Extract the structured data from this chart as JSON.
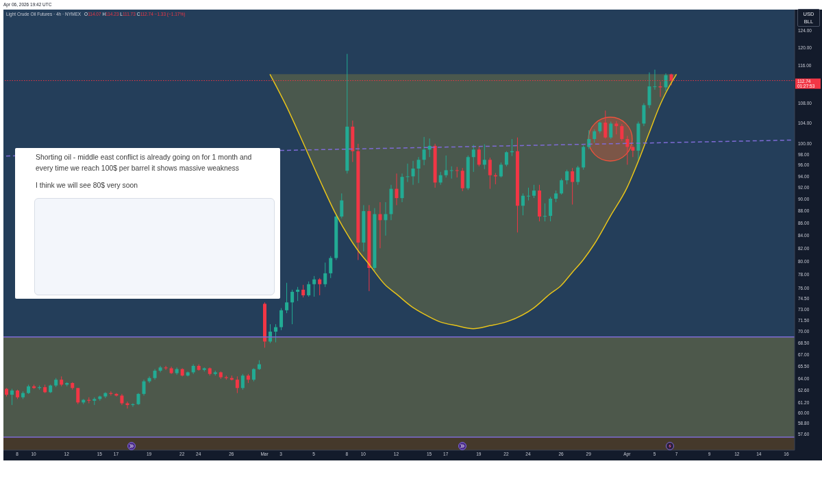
{
  "chart_data": {
    "type": "candlestick",
    "title": "Light Crude Oil Futures · 4h · NYMEX",
    "subtitle": "O114.07 H114.23 L111.73 C112.74 −1.33 (−1.17%)",
    "annotations": [
      "Apr 06, 2026 19:42 UTC",
      "Shorting oil - middle east conflict is already going on for 1 month and every time we reach 100$ per barrel it shows massive weakness",
      "I think we will see 80$ very soon",
      "USD",
      "BLL",
      "01:27:53"
    ],
    "categories": [
      null,
      null,
      "8",
      null,
      null,
      "10",
      null,
      null,
      null,
      null,
      null,
      "12",
      null,
      null,
      null,
      null,
      null,
      "15",
      null,
      null,
      "17",
      null,
      null,
      null,
      null,
      null,
      "19",
      null,
      null,
      null,
      null,
      null,
      "22",
      null,
      null,
      "24",
      null,
      null,
      null,
      null,
      null,
      "26",
      null,
      null,
      null,
      null,
      null,
      "Mar",
      null,
      null,
      "3",
      null,
      null,
      null,
      null,
      null,
      "5",
      null,
      null,
      null,
      null,
      null,
      "8",
      null,
      null,
      "10",
      null,
      null,
      null,
      null,
      null,
      "12",
      null,
      null,
      null,
      null,
      null,
      "15",
      null,
      null,
      "17",
      null,
      null,
      null,
      null,
      null,
      "19",
      null,
      null,
      null,
      null,
      "22",
      null,
      null,
      null,
      "24",
      null,
      null,
      null,
      null,
      null,
      "26",
      null,
      null,
      null,
      null,
      "29",
      null,
      null,
      null,
      null,
      null,
      null,
      "Apr",
      null,
      null,
      null,
      null,
      "5",
      null,
      null,
      null,
      "7",
      null,
      null,
      null,
      null,
      null,
      "9",
      null,
      null,
      null,
      null,
      "12",
      null,
      null,
      null,
      "14",
      null,
      null,
      null,
      null,
      "16",
      null
    ],
    "ohlc": [
      [
        62.8,
        62.9,
        61.9,
        62.1
      ],
      [
        62.1,
        62.8,
        60.9,
        62.6
      ],
      [
        62.6,
        62.7,
        61.6,
        61.8
      ],
      [
        61.8,
        62.5,
        61.6,
        62.3
      ],
      [
        62.3,
        63.3,
        62.2,
        63.1
      ],
      [
        63.1,
        63.3,
        62.8,
        62.9
      ],
      [
        62.9,
        63.2,
        62.7,
        63.0
      ],
      [
        63.0,
        63.3,
        62.3,
        62.4
      ],
      [
        62.4,
        63.3,
        62.3,
        63.2
      ],
      [
        63.2,
        64.1,
        63.0,
        63.9
      ],
      [
        63.9,
        64.3,
        63.1,
        63.3
      ],
      [
        63.3,
        63.6,
        63.1,
        63.5
      ],
      [
        63.5,
        63.6,
        62.7,
        62.9
      ],
      [
        62.9,
        62.9,
        61.0,
        61.2
      ],
      [
        61.2,
        61.6,
        61.0,
        61.5
      ],
      [
        61.5,
        61.8,
        61.1,
        61.4
      ],
      [
        61.4,
        61.8,
        60.9,
        61.6
      ],
      [
        61.6,
        62.0,
        61.4,
        61.9
      ],
      [
        61.9,
        62.4,
        61.7,
        62.3
      ],
      [
        62.3,
        62.5,
        62.0,
        62.2
      ],
      [
        62.2,
        62.3,
        61.9,
        62.0
      ],
      [
        62.0,
        62.2,
        60.9,
        61.1
      ],
      [
        61.1,
        61.3,
        60.5,
        60.9
      ],
      [
        60.9,
        61.1,
        60.7,
        61.0
      ],
      [
        61.0,
        62.3,
        60.9,
        62.2
      ],
      [
        62.2,
        63.9,
        62.0,
        63.7
      ],
      [
        63.7,
        64.3,
        63.5,
        64.1
      ],
      [
        64.1,
        65.2,
        63.9,
        65.0
      ],
      [
        65.0,
        65.6,
        64.8,
        65.4
      ],
      [
        65.4,
        65.6,
        65.1,
        65.3
      ],
      [
        65.3,
        65.5,
        64.6,
        64.7
      ],
      [
        64.7,
        65.4,
        64.5,
        65.2
      ],
      [
        65.2,
        65.3,
        64.3,
        64.4
      ],
      [
        64.4,
        64.9,
        64.3,
        64.8
      ],
      [
        64.8,
        65.8,
        64.6,
        65.6
      ],
      [
        65.6,
        65.8,
        65.0,
        65.1
      ],
      [
        65.1,
        65.4,
        64.9,
        65.3
      ],
      [
        65.3,
        65.4,
        64.4,
        64.6
      ],
      [
        64.6,
        65.0,
        64.4,
        64.8
      ],
      [
        64.8,
        64.9,
        64.0,
        64.2
      ],
      [
        64.2,
        64.4,
        63.9,
        64.1
      ],
      [
        64.1,
        64.4,
        63.8,
        63.9
      ],
      [
        63.9,
        64.3,
        62.3,
        62.9
      ],
      [
        62.9,
        64.6,
        62.7,
        64.4
      ],
      [
        64.4,
        64.6,
        63.5,
        63.9
      ],
      [
        63.9,
        65.3,
        63.7,
        65.2
      ],
      [
        65.2,
        66.3,
        65.1,
        65.8
      ],
      [
        73.8,
        74.0,
        67.9,
        68.7
      ],
      [
        68.7,
        71.0,
        68.5,
        70.0
      ],
      [
        70.0,
        71.0,
        68.6,
        70.6
      ],
      [
        70.6,
        73.2,
        70.2,
        72.9
      ],
      [
        72.9,
        76.8,
        72.5,
        74.0
      ],
      [
        74.0,
        75.8,
        71.0,
        75.5
      ],
      [
        75.5,
        76.2,
        74.2,
        75.8
      ],
      [
        75.8,
        76.5,
        74.7,
        75.0
      ],
      [
        75.0,
        77.0,
        74.8,
        76.6
      ],
      [
        76.6,
        77.8,
        74.8,
        77.3
      ],
      [
        77.3,
        77.5,
        75.0,
        76.6
      ],
      [
        76.6,
        79.8,
        76.2,
        78.2
      ],
      [
        78.2,
        80.8,
        77.5,
        80.5
      ],
      [
        80.5,
        87.5,
        80.2,
        87.1
      ],
      [
        87.1,
        91.0,
        86.8,
        89.8
      ],
      [
        95.0,
        118.6,
        94.5,
        103.3
      ],
      [
        103.3,
        104.5,
        96.6,
        98.6
      ],
      [
        98.6,
        100.0,
        80.2,
        82.9
      ],
      [
        82.9,
        89.0,
        81.5,
        88.0
      ],
      [
        88.0,
        89.0,
        75.6,
        79.0
      ],
      [
        79.0,
        88.5,
        78.5,
        87.5
      ],
      [
        87.5,
        89.5,
        82.0,
        86.5
      ],
      [
        86.5,
        89.5,
        84.0,
        87.5
      ],
      [
        87.5,
        92.5,
        86.5,
        91.8
      ],
      [
        91.8,
        94.5,
        89.0,
        90.2
      ],
      [
        90.2,
        94.5,
        89.5,
        93.9
      ],
      [
        93.9,
        96.3,
        93.0,
        94.0
      ],
      [
        94.0,
        96.8,
        92.5,
        95.4
      ],
      [
        95.4,
        97.5,
        92.8,
        97.0
      ],
      [
        97.0,
        101.3,
        96.0,
        98.9
      ],
      [
        98.9,
        101.0,
        97.5,
        99.6
      ],
      [
        99.6,
        100.0,
        92.0,
        92.9
      ],
      [
        92.9,
        94.8,
        92.5,
        94.2
      ],
      [
        94.2,
        97.8,
        93.8,
        95.1
      ],
      [
        95.1,
        95.8,
        93.6,
        95.1
      ],
      [
        95.1,
        95.7,
        93.8,
        95.0
      ],
      [
        95.0,
        95.5,
        91.4,
        91.9
      ],
      [
        91.9,
        97.8,
        91.6,
        97.5
      ],
      [
        97.5,
        99.8,
        94.8,
        98.9
      ],
      [
        98.9,
        99.4,
        95.8,
        96.1
      ],
      [
        96.1,
        99.9,
        95.3,
        97.0
      ],
      [
        97.0,
        97.4,
        91.8,
        94.2
      ],
      [
        94.2,
        94.6,
        92.6,
        94.0
      ],
      [
        94.0,
        96.5,
        93.8,
        96.1
      ],
      [
        96.1,
        98.6,
        95.8,
        98.4
      ],
      [
        98.4,
        100.9,
        97.7,
        98.6
      ],
      [
        98.6,
        101.2,
        84.5,
        88.9
      ],
      [
        88.9,
        91.0,
        87.3,
        90.6
      ],
      [
        90.6,
        92.0,
        89.8,
        90.6
      ],
      [
        90.6,
        92.5,
        90.2,
        91.5
      ],
      [
        91.5,
        92.5,
        86.3,
        87.1
      ],
      [
        87.1,
        89.3,
        86.3,
        87.2
      ],
      [
        87.2,
        90.4,
        86.3,
        90.1
      ],
      [
        90.1,
        91.5,
        89.5,
        91.0
      ],
      [
        91.0,
        93.6,
        90.8,
        93.3
      ],
      [
        93.3,
        95.2,
        92.6,
        94.9
      ],
      [
        94.9,
        95.5,
        89.1,
        93.0
      ],
      [
        93.0,
        95.9,
        92.5,
        95.6
      ],
      [
        95.6,
        99.7,
        95.2,
        99.4
      ],
      [
        99.4,
        102.6,
        99.0,
        100.9
      ],
      [
        100.9,
        102.8,
        100.2,
        102.4
      ],
      [
        102.4,
        104.3,
        102.0,
        104.1
      ],
      [
        104.1,
        106.5,
        101.0,
        101.2
      ],
      [
        101.2,
        104.3,
        100.9,
        103.9
      ],
      [
        103.9,
        104.4,
        101.8,
        103.4
      ],
      [
        103.4,
        103.8,
        100.5,
        100.9
      ],
      [
        100.9,
        101.5,
        96.1,
        99.4
      ],
      [
        99.4,
        99.8,
        97.5,
        98.7
      ],
      [
        98.7,
        104.3,
        97.0,
        103.9
      ],
      [
        103.9,
        108.0,
        103.4,
        107.6
      ],
      [
        107.6,
        114.5,
        107.0,
        111.5
      ],
      [
        111.5,
        115.1,
        110.8,
        111.5
      ],
      [
        111.5,
        112.5,
        109.3,
        111.3
      ],
      [
        111.3,
        114.3,
        110.5,
        113.9
      ],
      [
        114.07,
        114.23,
        111.73,
        112.74
      ],
      null,
      null,
      null,
      null,
      null,
      null,
      null,
      null,
      null,
      null,
      null,
      null,
      null,
      null,
      null,
      null,
      null,
      null,
      null,
      null,
      null,
      null
    ],
    "series": [
      {
        "type": "line",
        "color": "#e8c41a",
        "values": [
          null,
          null,
          null,
          null,
          null,
          null,
          null,
          null,
          null,
          null,
          null,
          null,
          null,
          null,
          null,
          null,
          null,
          null,
          null,
          null,
          null,
          null,
          null,
          null,
          null,
          null,
          null,
          null,
          null,
          null,
          null,
          null,
          null,
          null,
          null,
          null,
          null,
          null,
          null,
          null,
          null,
          null,
          null,
          null,
          null,
          null,
          null,
          null,
          114.1,
          null,
          null,
          107.4,
          null,
          null,
          100.3,
          null,
          null,
          93.5,
          null,
          null,
          87.5,
          null,
          null,
          null,
          81.7,
          null,
          79.6,
          null,
          null,
          76.5,
          null,
          75.2,
          null,
          null,
          73.3,
          null,
          72.4,
          null,
          null,
          71.3,
          null,
          null,
          70.8,
          null,
          null,
          70.4,
          null,
          null,
          70.8,
          null,
          null,
          71.3,
          null,
          null,
          null,
          null,
          73.2,
          null,
          null,
          75.2,
          null,
          76.4,
          null,
          78.3,
          null,
          80.2,
          null,
          82.6,
          null,
          null,
          87.2,
          null,
          null,
          92.0,
          null,
          96.6,
          null,
          102.0,
          null,
          107.6,
          110.0,
          null,
          114.1,
          null,
          null,
          null,
          null,
          null,
          null,
          null,
          null,
          null,
          null,
          null,
          null,
          null,
          null,
          null,
          null,
          null,
          null,
          null,
          null,
          null
        ],
        "lower": [
          null,
          null,
          null,
          null,
          null,
          null,
          null,
          null,
          null,
          null,
          null,
          null,
          null,
          null,
          null,
          null,
          null,
          null,
          null,
          null,
          null,
          null,
          null,
          null,
          null,
          null,
          null,
          null,
          null,
          null,
          null,
          null,
          null,
          null,
          null,
          null,
          null,
          null,
          null,
          null,
          null,
          null,
          null,
          null,
          null,
          null,
          null,
          null,
          114.1,
          null,
          null,
          107.4,
          null,
          null,
          100.3,
          null,
          null,
          93.5,
          null,
          null,
          87.5,
          null,
          null,
          null,
          81.7,
          null,
          79.6,
          null,
          null,
          76.5,
          null,
          75.2,
          null,
          null,
          73.3,
          null,
          72.4,
          null,
          null,
          71.3,
          null,
          null,
          70.8,
          null,
          null,
          70.4,
          null,
          null,
          70.8,
          null,
          null,
          71.3,
          null,
          null,
          null,
          null,
          73.2,
          null,
          null,
          75.2,
          null,
          76.4,
          null,
          78.3,
          null,
          80.2,
          null,
          82.6,
          null,
          null,
          87.2,
          null,
          null,
          92.0,
          null,
          96.6,
          null,
          102.0,
          null,
          107.6,
          110.0,
          null,
          114.1,
          null,
          null,
          null,
          null,
          null,
          null,
          null,
          null,
          null,
          null,
          null,
          null,
          null,
          null,
          null,
          null,
          null,
          null,
          null,
          null,
          null
        ],
        "upper": [
          null,
          null,
          null,
          null,
          null,
          null,
          null,
          null,
          null,
          null,
          null,
          null,
          null,
          null,
          null,
          null,
          null,
          null,
          null,
          null,
          null,
          null,
          null,
          null,
          null,
          null,
          null,
          null,
          null,
          null,
          null,
          null,
          null,
          null,
          null,
          null,
          null,
          null,
          null,
          null,
          null,
          null,
          null,
          null,
          null,
          null,
          null,
          null,
          114.1,
          null,
          null,
          114.1,
          null,
          null,
          114.1,
          null,
          null,
          114.1,
          null,
          null,
          114.1,
          null,
          null,
          null,
          114.1,
          null,
          114.1,
          null,
          null,
          114.1,
          null,
          114.1,
          null,
          null,
          114.1,
          null,
          114.1,
          null,
          null,
          114.1,
          null,
          null,
          114.1,
          null,
          null,
          114.1,
          null,
          null,
          114.1,
          null,
          null,
          114.1,
          null,
          null,
          null,
          null,
          114.1,
          null,
          null,
          114.1,
          null,
          114.1,
          null,
          114.1,
          null,
          114.1,
          null,
          114.1,
          null,
          null,
          114.1,
          null,
          null,
          114.1,
          null,
          114.1,
          null,
          114.1,
          null,
          114.1,
          114.1,
          null,
          114.1,
          null,
          null,
          null,
          null,
          null,
          null,
          null,
          null,
          null,
          null,
          null,
          null,
          null,
          null,
          null,
          null,
          null,
          null,
          null,
          null,
          null
        ]
      },
      {
        "type": "line",
        "color": "#7e6bd6",
        "line_style": "dashed",
        "values": [
          97.7,
          null,
          null,
          null,
          null,
          null,
          null,
          null,
          null,
          null,
          null,
          null,
          null,
          null,
          null,
          null,
          null,
          null,
          null,
          null,
          null,
          null,
          null,
          null,
          null,
          null,
          null,
          null,
          null,
          null,
          null,
          null,
          null,
          null,
          null,
          null,
          null,
          null,
          null,
          null,
          null,
          null,
          null,
          null,
          null,
          null,
          null,
          null,
          null,
          null,
          null,
          null,
          null,
          null,
          null,
          null,
          null,
          null,
          null,
          null,
          null,
          null,
          null,
          null,
          null,
          null,
          null,
          null,
          null,
          null,
          null,
          null,
          null,
          null,
          null,
          null,
          null,
          null,
          null,
          null,
          null,
          null,
          null,
          null,
          null,
          null,
          null,
          null,
          null,
          null,
          null,
          null,
          null,
          null,
          null,
          null,
          null,
          null,
          null,
          null,
          null,
          null,
          null,
          null,
          null,
          null,
          null,
          null,
          null,
          null,
          null,
          null,
          null,
          null,
          null,
          null,
          null,
          null,
          null,
          null,
          null,
          null,
          null,
          null,
          null,
          null,
          null,
          null,
          null,
          null,
          null,
          null,
          null,
          null,
          null,
          null,
          null,
          null,
          null,
          null,
          null,
          null,
          null,
          100.7
        ]
      }
    ],
    "ylim": [
      55.9,
      129
    ],
    "yticks": [
      {
        "value": 57.6,
        "label": "57.60"
      },
      {
        "value": 58.8,
        "label": "58.80"
      },
      {
        "value": 60,
        "label": "60.00"
      },
      {
        "value": 61.2,
        "label": "61.20"
      },
      {
        "value": 62.6,
        "label": "62.60"
      },
      {
        "value": 64,
        "label": "64.00"
      },
      {
        "value": 65.5,
        "label": "65.50"
      },
      {
        "value": 67,
        "label": "67.00"
      },
      {
        "value": 68.5,
        "label": "68.50"
      },
      {
        "value": 70,
        "label": "70.00"
      },
      {
        "value": 71.5,
        "label": "71.50"
      },
      {
        "value": 73,
        "label": "73.00"
      },
      {
        "value": 74.5,
        "label": "74.50"
      },
      {
        "value": 76,
        "label": "76.00"
      },
      {
        "value": 78,
        "label": "78.00"
      },
      {
        "value": 80,
        "label": "80.00"
      },
      {
        "value": 82,
        "label": "82.00"
      },
      {
        "value": 84,
        "label": "84.00"
      },
      {
        "value": 86,
        "label": "86.00"
      },
      {
        "value": 88,
        "label": "88.00"
      },
      {
        "value": 90,
        "label": "90.00"
      },
      {
        "value": 92,
        "label": "92.00"
      },
      {
        "value": 94,
        "label": "94.00"
      },
      {
        "value": 96,
        "label": "96.00"
      },
      {
        "value": 98,
        "label": "98.00"
      },
      {
        "value": 100,
        "label": "100.00"
      },
      {
        "value": 104,
        "label": "104.00"
      },
      {
        "value": 108,
        "label": "108.00"
      },
      {
        "value": 116,
        "label": "116.00"
      },
      {
        "value": 120,
        "label": "120.00"
      },
      {
        "value": 124,
        "label": "124.00"
      }
    ],
    "log": "y",
    "ref_lines": [
      {
        "axis": "y",
        "value": 112.74,
        "label": "112.74",
        "color": "#f23645",
        "line_style": "dotted"
      },
      {
        "axis": "y",
        "value": 69.3,
        "color": "#7e6bd6"
      },
      {
        "axis": "y",
        "value": 57.3,
        "color": "#7e6bd6"
      }
    ],
    "bands": [
      {
        "axis": "y",
        "from": 57.3,
        "to": 69.3,
        "color": "#4d584b"
      },
      {
        "axis": "y",
        "from": 55.9,
        "to": 57.3,
        "color": "#45392b"
      }
    ]
  }
}
